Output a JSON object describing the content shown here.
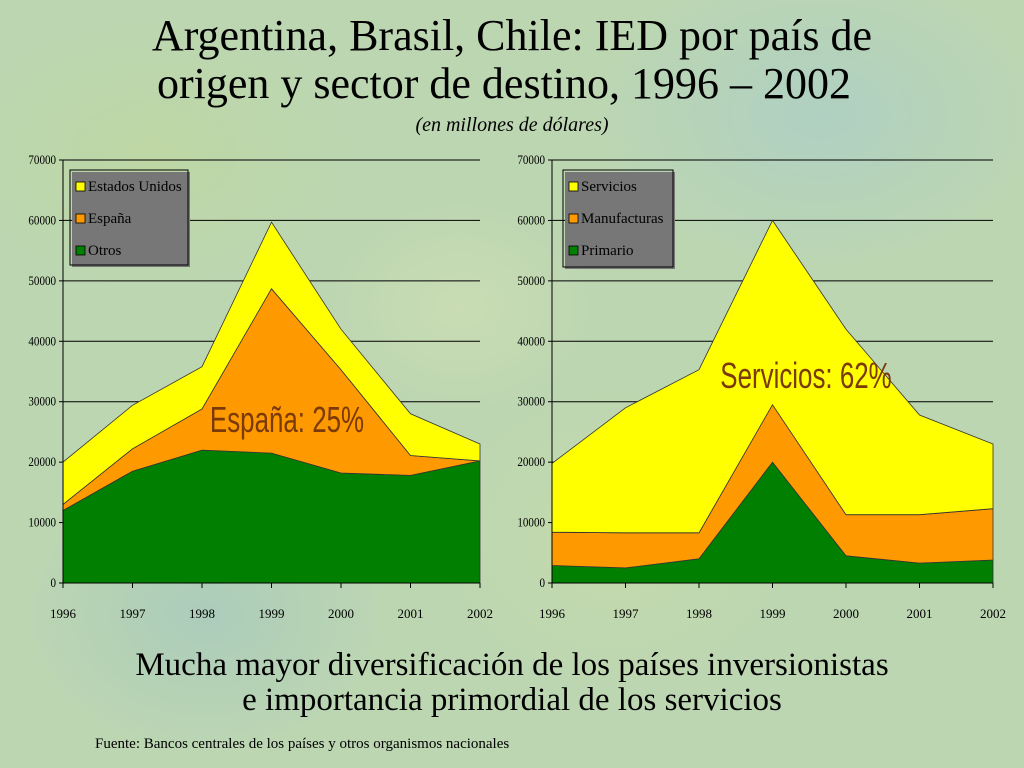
{
  "header": {
    "title_line1": "Argentina, Brasil, Chile: IED por país de",
    "title_line2": "origen y sector de destino, 1996 – 2002",
    "subtitle": "(en millones de dólares)"
  },
  "chart_data": [
    {
      "type": "area",
      "stacked": true,
      "x": [
        "1996",
        "1997",
        "1998",
        "1999",
        "2000",
        "2001",
        "2002"
      ],
      "ylim": [
        0,
        70000
      ],
      "yticks": [
        "0",
        "10000",
        "20000",
        "30000",
        "40000",
        "50000",
        "60000",
        "70000"
      ],
      "grid": true,
      "legend_position": "top-left",
      "series": [
        {
          "name": "Otros",
          "color": "#007f00",
          "values": [
            12000,
            18500,
            22000,
            21500,
            18200,
            17800,
            20200
          ]
        },
        {
          "name": "España",
          "color": "#ff9900",
          "values": [
            1000,
            3700,
            6800,
            27200,
            17100,
            3300,
            0
          ]
        },
        {
          "name": "Estados Unidos",
          "color": "#ffff00",
          "values": [
            7000,
            7200,
            7000,
            11000,
            6700,
            6900,
            2800
          ]
        }
      ],
      "legend_order": [
        "Estados Unidos",
        "España",
        "Otros"
      ],
      "annotation": {
        "text": "España: 25%",
        "x": "1999",
        "y": 27000
      }
    },
    {
      "type": "area",
      "stacked": true,
      "x": [
        "1996",
        "1997",
        "1998",
        "1999",
        "2000",
        "2001",
        "2002"
      ],
      "ylim": [
        0,
        70000
      ],
      "yticks": [
        "0",
        "10000",
        "20000",
        "30000",
        "40000",
        "50000",
        "60000",
        "70000"
      ],
      "grid": true,
      "legend_position": "top-left",
      "series": [
        {
          "name": "Primario",
          "color": "#007f00",
          "values": [
            2900,
            2500,
            4000,
            20000,
            4500,
            3300,
            3800
          ]
        },
        {
          "name": "Manufacturas",
          "color": "#ff9900",
          "values": [
            5500,
            5800,
            4300,
            9500,
            6800,
            8000,
            8500
          ]
        },
        {
          "name": "Servicios",
          "color": "#ffff00",
          "values": [
            11400,
            20700,
            27000,
            30500,
            30700,
            16500,
            10700
          ]
        }
      ],
      "legend_order": [
        "Servicios",
        "Manufacturas",
        "Primario"
      ],
      "annotation": {
        "text": "Servicios: 62%",
        "x": "1999",
        "y": 33000
      }
    }
  ],
  "caption": {
    "line1": "Mucha mayor diversificación de los países inversionistas",
    "line2": "e importancia primordial de los servicios"
  },
  "source": "Fuente: Bancos centrales de los países y otros organismos nacionales"
}
